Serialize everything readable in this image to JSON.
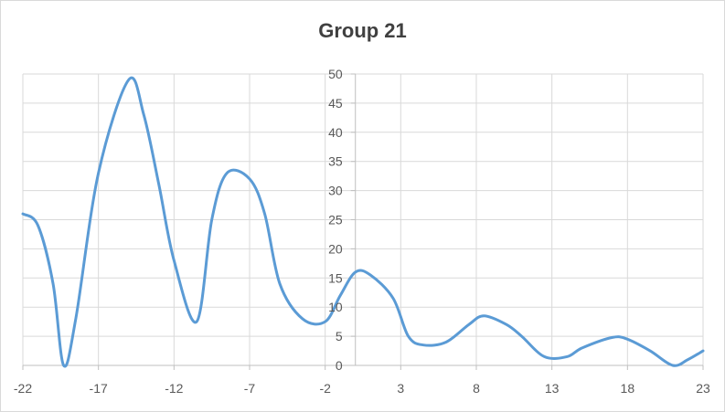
{
  "chart_data": {
    "type": "line",
    "title": "Group 21",
    "xlabel": "",
    "ylabel": "",
    "xlim": [
      -22,
      23
    ],
    "ylim": [
      0,
      50
    ],
    "x_ticks": [
      -22,
      -17,
      -12,
      -7,
      -2,
      3,
      8,
      13,
      18,
      23
    ],
    "y_ticks": [
      0,
      5,
      10,
      15,
      20,
      25,
      30,
      35,
      40,
      45,
      50
    ],
    "grid": true,
    "legend": "none",
    "smooth": true,
    "series": [
      {
        "color": "#5b9bd5",
        "points": [
          [
            -22,
            26
          ],
          [
            -21,
            24
          ],
          [
            -20,
            14
          ],
          [
            -19.3,
            0
          ],
          [
            -18.5,
            8
          ],
          [
            -17,
            33
          ],
          [
            -15,
            49
          ],
          [
            -14,
            43
          ],
          [
            -13,
            31
          ],
          [
            -12,
            18
          ],
          [
            -10.5,
            7.5
          ],
          [
            -9.5,
            25
          ],
          [
            -8.5,
            33
          ],
          [
            -7,
            32
          ],
          [
            -6,
            26
          ],
          [
            -5,
            14
          ],
          [
            -3.5,
            8
          ],
          [
            -2,
            7.5
          ],
          [
            -1,
            12
          ],
          [
            0,
            16
          ],
          [
            1,
            15.5
          ],
          [
            2.5,
            11.5
          ],
          [
            3.5,
            5
          ],
          [
            4.5,
            3.5
          ],
          [
            6,
            4
          ],
          [
            7.5,
            7
          ],
          [
            8.5,
            8.5
          ],
          [
            10,
            7
          ],
          [
            11,
            5
          ],
          [
            12.5,
            1.5
          ],
          [
            14,
            1.5
          ],
          [
            15,
            3
          ],
          [
            17,
            4.8
          ],
          [
            18,
            4.5
          ],
          [
            19.5,
            2.5
          ],
          [
            21,
            0
          ],
          [
            22,
            1
          ],
          [
            23,
            2.5
          ]
        ]
      }
    ]
  }
}
